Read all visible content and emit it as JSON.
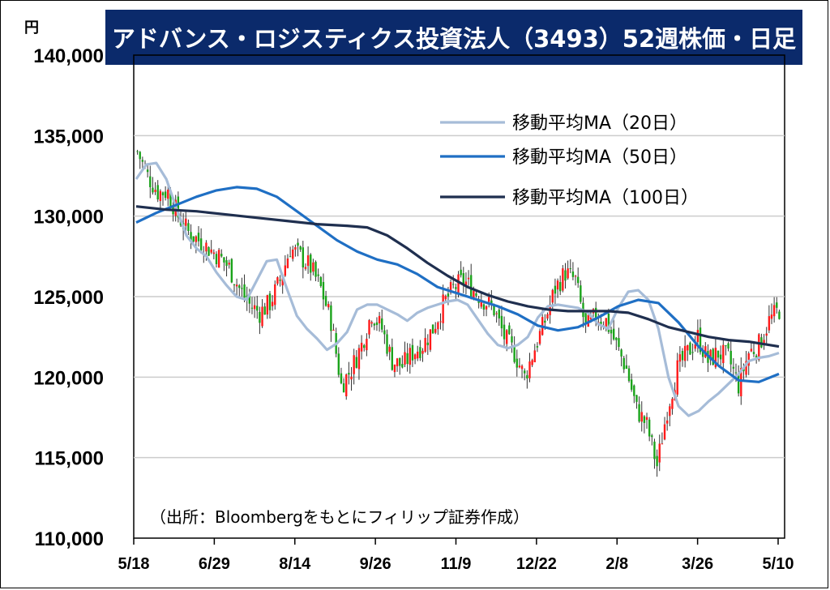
{
  "chart_data": {
    "type": "candlestick",
    "title": "アドバンス・ロジスティクス投資法人（3493）52週株価・日足",
    "unit": "円",
    "ylim": [
      110000,
      140000
    ],
    "yticks": [
      "110,000",
      "115,000",
      "120,000",
      "125,000",
      "130,000",
      "135,000",
      "140,000"
    ],
    "ytick_values": [
      110000,
      115000,
      120000,
      125000,
      130000,
      135000,
      140000
    ],
    "xticks": [
      "5/18",
      "6/29",
      "8/14",
      "9/26",
      "11/9",
      "12/22",
      "2/8",
      "3/26",
      "5/10"
    ],
    "grid": "horizontal",
    "legend_position": "top-right",
    "colors": {
      "up": "#ff1a1a",
      "down": "#1aa31a",
      "ma20": "#a6bcd8",
      "ma50": "#1f6fc4",
      "ma100": "#1f2f4f",
      "title_bg": "#0b2a6b"
    },
    "close_series_weekly": [
      [
        0,
        134000
      ],
      [
        1,
        132500
      ],
      [
        2,
        131500
      ],
      [
        3,
        131500
      ],
      [
        4,
        130000
      ],
      [
        5,
        129000
      ],
      [
        6,
        128500
      ],
      [
        7,
        128000
      ],
      [
        8,
        127500
      ],
      [
        9,
        126800
      ],
      [
        10,
        125500
      ],
      [
        11,
        124500
      ],
      [
        12,
        124000
      ],
      [
        13,
        124600
      ],
      [
        14,
        126000
      ],
      [
        15,
        128000
      ],
      [
        16,
        127500
      ],
      [
        17,
        126800
      ],
      [
        18,
        125500
      ],
      [
        19,
        123500
      ],
      [
        20,
        119500
      ],
      [
        21,
        120500
      ],
      [
        22,
        122000
      ],
      [
        23,
        124000
      ],
      [
        24,
        123000
      ],
      [
        25,
        121000
      ],
      [
        26,
        120700
      ],
      [
        27,
        121500
      ],
      [
        28,
        122000
      ],
      [
        29,
        123000
      ],
      [
        30,
        124500
      ],
      [
        31,
        125500
      ],
      [
        32,
        126000
      ],
      [
        33,
        125400
      ],
      [
        34,
        124800
      ],
      [
        35,
        124200
      ],
      [
        36,
        122500
      ],
      [
        37,
        121500
      ],
      [
        38,
        120000
      ],
      [
        39,
        121800
      ],
      [
        40,
        123500
      ],
      [
        41,
        125500
      ],
      [
        42,
        126500
      ],
      [
        43,
        126000
      ],
      [
        44,
        123000
      ],
      [
        45,
        123800
      ],
      [
        46,
        123500
      ],
      [
        47,
        122000
      ],
      [
        48,
        120500
      ],
      [
        49,
        118000
      ],
      [
        50,
        117000
      ],
      [
        51,
        114500
      ],
      [
        52,
        118000
      ],
      [
        53,
        120500
      ],
      [
        54,
        121500
      ],
      [
        55,
        122500
      ],
      [
        56,
        121000
      ],
      [
        57,
        121500
      ],
      [
        58,
        121200
      ],
      [
        59,
        119500
      ],
      [
        60,
        121500
      ],
      [
        61,
        122000
      ],
      [
        62,
        123500
      ],
      [
        63,
        124200
      ]
    ],
    "series": [
      {
        "name": "移動平均MA（20日）",
        "values": [
          [
            0,
            132300
          ],
          [
            2,
            133200
          ],
          [
            4,
            133300
          ],
          [
            6,
            132300
          ],
          [
            8,
            130500
          ],
          [
            10,
            128800
          ],
          [
            12,
            128000
          ],
          [
            14,
            127500
          ],
          [
            16,
            126500
          ],
          [
            18,
            125700
          ],
          [
            20,
            125000
          ],
          [
            22,
            124800
          ],
          [
            24,
            126000
          ],
          [
            26,
            127200
          ],
          [
            28,
            127300
          ],
          [
            30,
            125500
          ],
          [
            32,
            123800
          ],
          [
            34,
            123000
          ],
          [
            36,
            122400
          ],
          [
            38,
            121700
          ],
          [
            40,
            122100
          ],
          [
            42,
            122800
          ],
          [
            44,
            124200
          ],
          [
            46,
            124500
          ],
          [
            48,
            124500
          ],
          [
            50,
            124200
          ],
          [
            52,
            123900
          ],
          [
            54,
            123500
          ],
          [
            56,
            124000
          ],
          [
            58,
            124300
          ],
          [
            60,
            124500
          ],
          [
            62,
            124700
          ],
          [
            64,
            124800
          ],
          [
            66,
            124500
          ],
          [
            68,
            123600
          ],
          [
            70,
            122700
          ],
          [
            72,
            122000
          ],
          [
            74,
            121800
          ],
          [
            76,
            122000
          ],
          [
            78,
            122500
          ],
          [
            80,
            123700
          ],
          [
            82,
            124400
          ],
          [
            84,
            124500
          ],
          [
            86,
            124400
          ],
          [
            88,
            124300
          ],
          [
            90,
            124000
          ],
          [
            92,
            123300
          ],
          [
            94,
            123000
          ],
          [
            96,
            124300
          ],
          [
            98,
            125300
          ],
          [
            100,
            125400
          ],
          [
            102,
            124800
          ],
          [
            104,
            123000
          ],
          [
            106,
            120000
          ],
          [
            108,
            118200
          ],
          [
            110,
            117600
          ],
          [
            112,
            117900
          ],
          [
            114,
            118500
          ],
          [
            116,
            119000
          ],
          [
            118,
            119600
          ],
          [
            120,
            120200
          ],
          [
            122,
            121000
          ],
          [
            124,
            121200
          ],
          [
            126,
            121300
          ],
          [
            128,
            121500
          ]
        ]
      },
      {
        "name": "移動平均MA（50日）",
        "values": [
          [
            0,
            129600
          ],
          [
            4,
            130200
          ],
          [
            8,
            130700
          ],
          [
            12,
            131200
          ],
          [
            16,
            131600
          ],
          [
            20,
            131800
          ],
          [
            24,
            131700
          ],
          [
            28,
            131200
          ],
          [
            32,
            130300
          ],
          [
            36,
            129400
          ],
          [
            40,
            128500
          ],
          [
            44,
            127800
          ],
          [
            48,
            127300
          ],
          [
            52,
            127000
          ],
          [
            56,
            126400
          ],
          [
            60,
            125600
          ],
          [
            64,
            125200
          ],
          [
            68,
            124800
          ],
          [
            72,
            124400
          ],
          [
            76,
            123900
          ],
          [
            80,
            123200
          ],
          [
            84,
            122900
          ],
          [
            88,
            123100
          ],
          [
            92,
            123700
          ],
          [
            96,
            124400
          ],
          [
            100,
            124800
          ],
          [
            104,
            124600
          ],
          [
            108,
            123400
          ],
          [
            112,
            121900
          ],
          [
            116,
            120700
          ],
          [
            120,
            119800
          ],
          [
            124,
            119700
          ],
          [
            128,
            120200
          ]
        ]
      },
      {
        "name": "移動平均MA（100日）",
        "values": [
          [
            0,
            130600
          ],
          [
            6,
            130400
          ],
          [
            12,
            130300
          ],
          [
            18,
            130100
          ],
          [
            24,
            129900
          ],
          [
            30,
            129700
          ],
          [
            36,
            129500
          ],
          [
            42,
            129400
          ],
          [
            46,
            129300
          ],
          [
            50,
            128800
          ],
          [
            54,
            128000
          ],
          [
            58,
            127100
          ],
          [
            62,
            126300
          ],
          [
            66,
            125600
          ],
          [
            70,
            125100
          ],
          [
            74,
            124700
          ],
          [
            78,
            124400
          ],
          [
            82,
            124200
          ],
          [
            86,
            124100
          ],
          [
            90,
            124100
          ],
          [
            94,
            124100
          ],
          [
            98,
            124000
          ],
          [
            102,
            123600
          ],
          [
            106,
            123100
          ],
          [
            110,
            122800
          ],
          [
            114,
            122500
          ],
          [
            118,
            122300
          ],
          [
            122,
            122200
          ],
          [
            126,
            122000
          ],
          [
            128,
            121900
          ]
        ]
      }
    ]
  },
  "source_note": "（出所：Bloombergをもとにフィリップ証券作成）"
}
